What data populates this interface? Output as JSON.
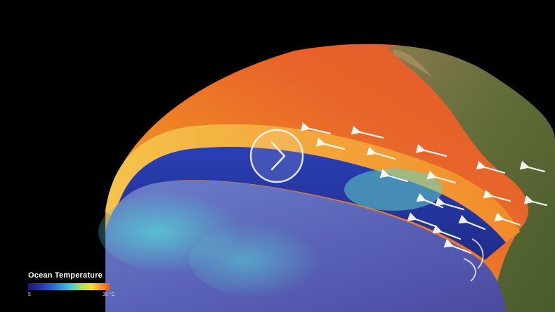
{
  "legend": {
    "title": "Ocean Temperature",
    "min_label": "5",
    "max_label": "30 °C",
    "colors": [
      "#1c1a6e",
      "#2b3bb0",
      "#2f7fd0",
      "#47c6d8",
      "#b6df5a",
      "#f2dc3a",
      "#f5952c",
      "#ee5a22"
    ]
  },
  "play_button": {
    "icon": "play-icon"
  }
}
